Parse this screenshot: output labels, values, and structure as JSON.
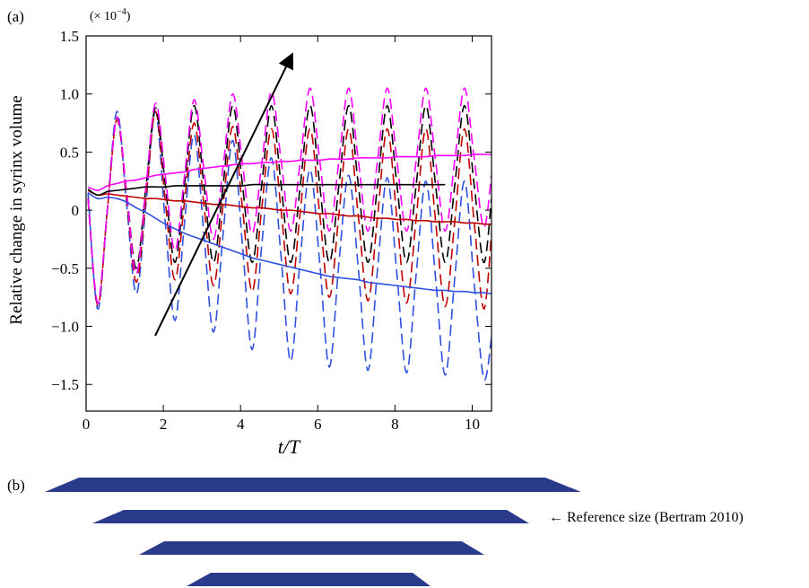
{
  "chart_data": {
    "type": "line",
    "panel_label": "(a)",
    "multiplier": {
      "base": "(× 10",
      "exp": "−4",
      "close": ")"
    },
    "x_label": "t/T",
    "y_label": "Relative change in syrinx volume",
    "xlim": [
      0,
      10.5
    ],
    "ylim": [
      -1.73,
      1.5
    ],
    "xticks": [
      0,
      2,
      4,
      6,
      8,
      10
    ],
    "yticks": [
      {
        "value": -1.5,
        "label": "−1.5"
      },
      {
        "value": -1,
        "label": "−1.0"
      },
      {
        "value": -0.5,
        "label": "−0.5"
      },
      0,
      0.5,
      {
        "value": 1,
        "label": "1.0"
      },
      1.5
    ],
    "x": [
      0.05,
      0.3,
      0.55,
      0.8,
      1.05,
      1.3,
      1.55,
      1.8,
      2.05,
      2.3,
      2.55,
      2.8,
      3.05,
      3.3,
      3.55,
      3.8,
      4.05,
      4.3,
      4.55,
      4.8,
      5.05,
      5.3,
      5.55,
      5.8,
      6.05,
      6.3,
      6.55,
      6.8,
      7.05,
      7.3,
      7.55,
      7.8,
      8.05,
      8.3,
      8.55,
      8.8,
      9.05,
      9.3,
      9.55,
      9.8,
      10.05,
      10.3,
      10.5
    ],
    "series": [
      {
        "color": "#3050e0",
        "dashed": true,
        "values": [
          0.15,
          -0.85,
          0.0,
          0.85,
          0.05,
          -0.72,
          0.05,
          0.85,
          -0.1,
          -0.95,
          -0.1,
          0.65,
          -0.2,
          -1.05,
          -0.2,
          0.6,
          -0.3,
          -1.2,
          -0.3,
          0.45,
          -0.4,
          -1.3,
          -0.4,
          0.35,
          -0.45,
          -1.35,
          -0.45,
          0.3,
          -0.5,
          -1.38,
          -0.5,
          0.28,
          -0.55,
          -1.4,
          -0.55,
          0.25,
          -0.58,
          -1.42,
          -0.58,
          0.25,
          -0.62,
          -1.45,
          -1.1
        ]
      },
      {
        "color": "#c00000",
        "dashed": true,
        "values": [
          0.1,
          -0.82,
          0.0,
          0.78,
          0.1,
          -0.62,
          0.1,
          0.85,
          0.08,
          -0.6,
          0.08,
          0.75,
          0.05,
          -0.65,
          0.05,
          0.72,
          0.02,
          -0.7,
          0.02,
          0.7,
          0,
          -0.72,
          0,
          0.7,
          -0.03,
          -0.75,
          -0.03,
          0.7,
          -0.05,
          -0.78,
          -0.05,
          0.7,
          -0.07,
          -0.8,
          -0.07,
          0.7,
          -0.09,
          -0.83,
          -0.09,
          0.7,
          -0.1,
          -0.85,
          -0.2
        ]
      },
      {
        "color": "#000000",
        "dashed": true,
        "values": [
          0.1,
          -0.8,
          0.0,
          0.8,
          0.15,
          -0.5,
          0.2,
          0.88,
          0.22,
          -0.45,
          0.22,
          0.9,
          0.22,
          -0.45,
          0.22,
          0.9,
          0.22,
          -0.45,
          0.22,
          0.9,
          0.22,
          -0.45,
          0.22,
          0.9,
          0.22,
          -0.45,
          0.22,
          0.9,
          0.22,
          -0.45,
          0.22,
          0.9,
          0.22,
          -0.45,
          0.22,
          0.9,
          0.22,
          -0.45,
          0.22,
          0.9,
          0.22,
          -0.45,
          0.1
        ]
      },
      {
        "color": "#ff00ff",
        "dashed": true,
        "values": [
          0.1,
          -0.8,
          0.0,
          0.8,
          0.15,
          -0.55,
          0.2,
          0.92,
          0.3,
          -0.35,
          0.3,
          0.95,
          0.35,
          -0.25,
          0.38,
          1.0,
          0.4,
          -0.2,
          0.4,
          1.02,
          0.43,
          -0.18,
          0.43,
          1.05,
          0.43,
          -0.18,
          0.43,
          1.05,
          0.43,
          -0.18,
          0.43,
          1.05,
          0.43,
          -0.18,
          0.43,
          1.05,
          0.43,
          -0.18,
          0.43,
          1.05,
          0.45,
          -0.15,
          0.3
        ]
      },
      {
        "color": "#3050e0",
        "dashed": false,
        "values": [
          0.15,
          0.1,
          0.11,
          0.1,
          0.07,
          0.02,
          -0.02,
          -0.07,
          -0.12,
          -0.16,
          -0.2,
          -0.23,
          -0.26,
          -0.29,
          -0.32,
          -0.35,
          -0.38,
          -0.41,
          -0.43,
          -0.45,
          -0.47,
          -0.49,
          -0.51,
          -0.53,
          -0.55,
          -0.57,
          -0.58,
          -0.59,
          -0.6,
          -0.62,
          -0.63,
          -0.64,
          -0.65,
          -0.66,
          -0.67,
          -0.68,
          -0.69,
          -0.69,
          -0.7,
          -0.7,
          -0.71,
          -0.71,
          -0.72
        ]
      },
      {
        "color": "#c00000",
        "dashed": false,
        "values": [
          0.17,
          0.13,
          0.14,
          0.13,
          0.12,
          0.11,
          0.1,
          0.1,
          0.09,
          0.08,
          0.08,
          0.07,
          0.06,
          0.05,
          0.05,
          0.04,
          0.03,
          0.02,
          0.02,
          0.01,
          0.0,
          0.0,
          -0.01,
          -0.02,
          -0.03,
          -0.03,
          -0.04,
          -0.05,
          -0.05,
          -0.06,
          -0.07,
          -0.07,
          -0.08,
          -0.08,
          -0.09,
          -0.09,
          -0.1,
          -0.1,
          -0.1,
          -0.11,
          -0.11,
          -0.12,
          -0.12
        ]
      },
      {
        "color": "#000000",
        "dashed": false,
        "values": [
          0.18,
          0.13,
          0.16,
          0.17,
          0.18,
          0.19,
          0.2,
          0.2,
          0.2,
          0.21,
          0.21,
          0.21,
          0.21,
          0.21,
          0.21,
          0.21,
          0.21,
          0.22,
          0.22,
          0.22,
          0.22,
          0.22,
          0.22,
          0.22,
          0.22,
          0.22,
          0.22,
          0.22,
          0.22,
          0.22,
          0.22,
          0.22,
          0.22,
          0.22,
          0.22,
          0.22,
          0.22,
          0.22,
          null,
          null,
          null,
          null,
          null
        ]
      },
      {
        "color": "#ff00ff",
        "dashed": false,
        "values": [
          0.2,
          0.17,
          0.21,
          0.23,
          0.25,
          0.26,
          0.28,
          0.3,
          0.31,
          0.32,
          0.33,
          0.35,
          0.36,
          0.37,
          0.38,
          0.39,
          0.4,
          0.4,
          0.41,
          0.41,
          0.42,
          0.42,
          0.43,
          0.43,
          0.43,
          0.44,
          0.44,
          0.44,
          0.45,
          0.45,
          0.45,
          0.45,
          0.46,
          0.46,
          0.46,
          0.46,
          0.47,
          0.47,
          0.47,
          0.47,
          0.48,
          0.48,
          0.48
        ]
      }
    ]
  },
  "panel_b": {
    "label": "(b)",
    "annotation": "← Reference size (Bertram 2010)"
  }
}
